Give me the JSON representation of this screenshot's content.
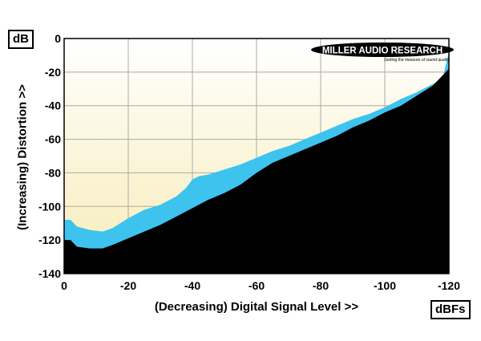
{
  "chart_data": {
    "type": "area",
    "ylabel": "(Increasing) Distortion >>",
    "xlabel": "(Decreasing) Digital Signal Level >>",
    "y_unit": "dB",
    "x_unit": "dBFs",
    "x_ticks": [
      0,
      -20,
      -40,
      -60,
      -80,
      -100,
      -120
    ],
    "x_tick_labels": [
      "0",
      "-20",
      "-40",
      "-60",
      "-80",
      "-100",
      "-120"
    ],
    "y_ticks": [
      0,
      -20,
      -40,
      -60,
      -80,
      -100,
      -120,
      -140
    ],
    "y_tick_labels": [
      "0",
      "-20",
      "-40",
      "-60",
      "-80",
      "-100",
      "-120",
      "-140"
    ],
    "xlim": [
      0,
      -120
    ],
    "ylim": [
      -140,
      0
    ],
    "grid": true,
    "logo": {
      "main": "MILLER AUDIO RESEARCH",
      "tagline": "Getting the measure of sound quality"
    },
    "colors": {
      "background_top": "#ffffff",
      "background_bottom": "#f8efc2",
      "band": "#3ec3ee",
      "floor": "#000000",
      "grid": "#aaaaaa"
    },
    "series": [
      {
        "x": [
          0,
          -2,
          -4,
          -8,
          -12,
          -15,
          -20,
          -25,
          -30,
          -35,
          -38,
          -40,
          -42,
          -45,
          -50,
          -55,
          -60,
          -65,
          -70,
          -75,
          -80,
          -85,
          -90,
          -95,
          -100,
          -105,
          -110,
          -115,
          -118,
          -120
        ],
        "values": [
          -108,
          -108,
          -112,
          -114,
          -115,
          -113,
          -107,
          -102,
          -99,
          -94,
          -89,
          -84,
          -82,
          -81,
          -78,
          -75,
          -71,
          -67,
          -64,
          -60,
          -56,
          -52,
          -48,
          -45,
          -41,
          -36,
          -32,
          -27,
          -24,
          -8
        ]
      },
      {
        "x": [
          0,
          -2,
          -4,
          -8,
          -12,
          -15,
          -20,
          -25,
          -30,
          -35,
          -40,
          -45,
          -50,
          -55,
          -60,
          -65,
          -70,
          -75,
          -80,
          -85,
          -90,
          -95,
          -100,
          -105,
          -110,
          -115,
          -120
        ],
        "values": [
          -120,
          -120,
          -124,
          -125,
          -125,
          -123,
          -119,
          -115,
          -111,
          -106,
          -101,
          -96,
          -92,
          -87,
          -80,
          -74,
          -70,
          -66,
          -62,
          -58,
          -53,
          -49,
          -44,
          -40,
          -34,
          -28,
          -18
        ]
      }
    ]
  }
}
